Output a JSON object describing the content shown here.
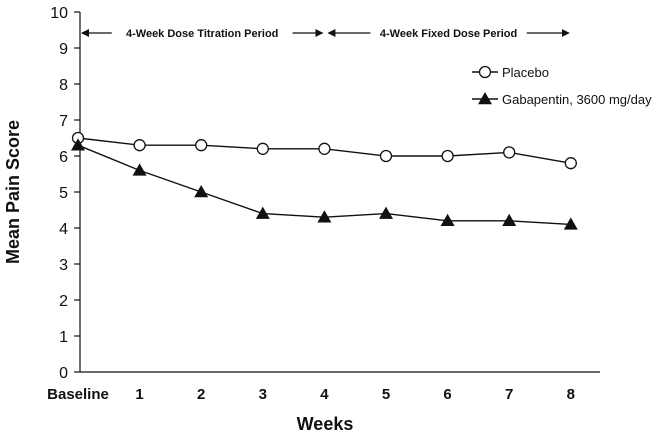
{
  "chart_data": {
    "type": "line",
    "title": "",
    "xlabel": "Weeks",
    "ylabel": "Mean Pain Score",
    "categories": [
      "Baseline",
      "1",
      "2",
      "3",
      "4",
      "5",
      "6",
      "7",
      "8"
    ],
    "ylim": [
      0,
      10
    ],
    "yticks": [
      0,
      1,
      2,
      3,
      4,
      5,
      6,
      7,
      8,
      9,
      10
    ],
    "grid": false,
    "legend_position": "top-right",
    "series": [
      {
        "name": "Placebo",
        "marker": "open-circle",
        "color": "#111111",
        "values": [
          6.5,
          6.3,
          6.3,
          6.2,
          6.2,
          6.0,
          6.0,
          6.1,
          5.8
        ]
      },
      {
        "name": "Gabapentin, 3600 mg/day",
        "marker": "filled-triangle",
        "color": "#111111",
        "values": [
          6.3,
          5.6,
          5.0,
          4.4,
          4.3,
          4.4,
          4.2,
          4.2,
          4.1
        ]
      }
    ],
    "annotations": [
      {
        "text": "4-Week Dose Titration Period",
        "from": "Baseline",
        "to": "4"
      },
      {
        "text": "4-Week Fixed Dose Period",
        "from": "4",
        "to": "8"
      }
    ]
  }
}
